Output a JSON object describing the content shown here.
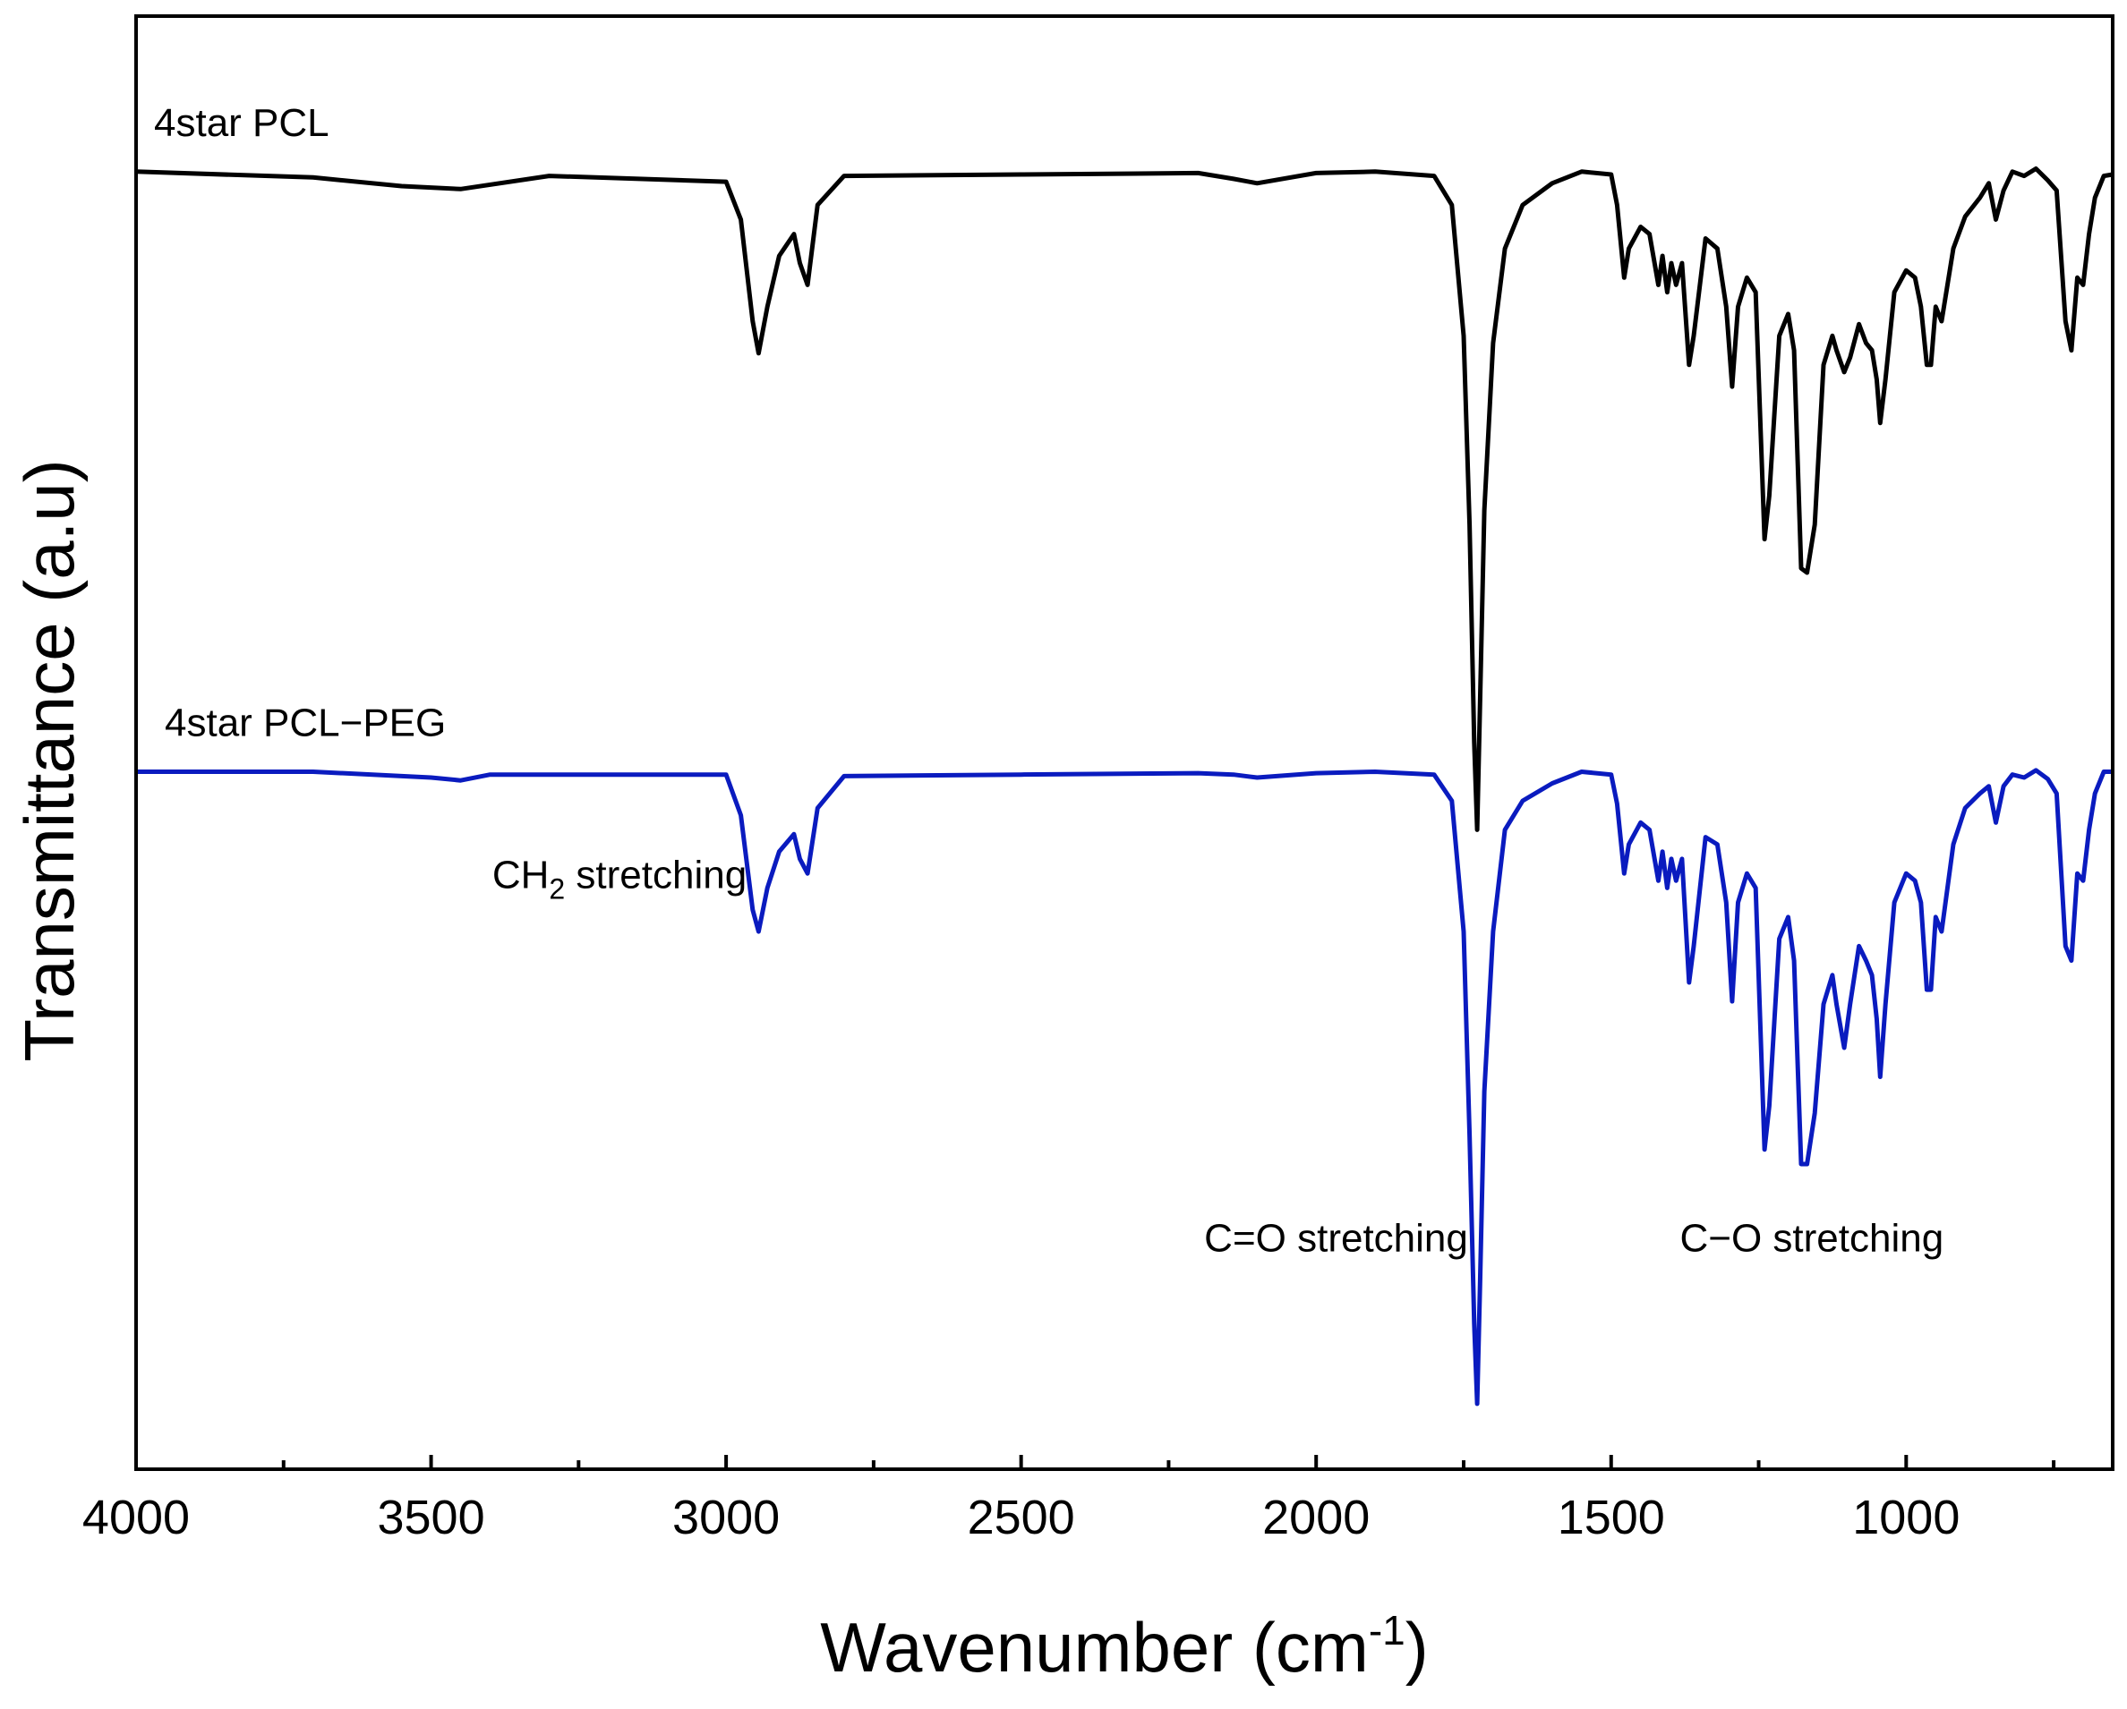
{
  "chart_data": {
    "type": "line",
    "title": "",
    "xlabel": "Wavenumber (cm",
    "xlabel_sup": "-1",
    "xlabel_close": ")",
    "ylabel": "Transmittance (a.u)",
    "xlim": [
      4000,
      650
    ],
    "ylim": [
      0,
      1
    ],
    "x_reversed": true,
    "y_ticks_shown": false,
    "grid": false,
    "x_ticks": [
      4000,
      3500,
      3000,
      2500,
      2000,
      1500,
      1000
    ],
    "x_tick_labels": [
      "4000",
      "3500",
      "3000",
      "2500",
      "2000",
      "1500",
      "1000"
    ],
    "x_minor_ticks": [
      3750,
      3250,
      2750,
      2250,
      1750,
      1250,
      750
    ],
    "series": [
      {
        "name": "4star PCL",
        "label": "4star PCL",
        "color": "#000000",
        "baseline": 0.893,
        "points": [
          [
            4000,
            0.893
          ],
          [
            3700,
            0.889
          ],
          [
            3550,
            0.883
          ],
          [
            3450,
            0.881
          ],
          [
            3300,
            0.89
          ],
          [
            3000,
            0.886
          ],
          [
            2975,
            0.86
          ],
          [
            2955,
            0.79
          ],
          [
            2945,
            0.768
          ],
          [
            2930,
            0.8
          ],
          [
            2910,
            0.835
          ],
          [
            2885,
            0.85
          ],
          [
            2875,
            0.83
          ],
          [
            2862,
            0.815
          ],
          [
            2845,
            0.87
          ],
          [
            2800,
            0.89
          ],
          [
            2500,
            0.891
          ],
          [
            2200,
            0.892
          ],
          [
            2140,
            0.888
          ],
          [
            2100,
            0.885
          ],
          [
            2000,
            0.892
          ],
          [
            1900,
            0.893
          ],
          [
            1800,
            0.89
          ],
          [
            1770,
            0.87
          ],
          [
            1750,
            0.78
          ],
          [
            1740,
            0.65
          ],
          [
            1732,
            0.5
          ],
          [
            1727,
            0.44
          ],
          [
            1722,
            0.53
          ],
          [
            1715,
            0.66
          ],
          [
            1700,
            0.775
          ],
          [
            1680,
            0.84
          ],
          [
            1650,
            0.87
          ],
          [
            1600,
            0.885
          ],
          [
            1550,
            0.893
          ],
          [
            1500,
            0.891
          ],
          [
            1490,
            0.87
          ],
          [
            1478,
            0.82
          ],
          [
            1470,
            0.84
          ],
          [
            1450,
            0.855
          ],
          [
            1435,
            0.85
          ],
          [
            1420,
            0.815
          ],
          [
            1413,
            0.835
          ],
          [
            1405,
            0.81
          ],
          [
            1398,
            0.83
          ],
          [
            1390,
            0.815
          ],
          [
            1380,
            0.83
          ],
          [
            1368,
            0.76
          ],
          [
            1360,
            0.78
          ],
          [
            1340,
            0.847
          ],
          [
            1320,
            0.84
          ],
          [
            1305,
            0.8
          ],
          [
            1295,
            0.745
          ],
          [
            1285,
            0.8
          ],
          [
            1270,
            0.82
          ],
          [
            1255,
            0.81
          ],
          [
            1240,
            0.64
          ],
          [
            1232,
            0.67
          ],
          [
            1215,
            0.78
          ],
          [
            1200,
            0.795
          ],
          [
            1190,
            0.77
          ],
          [
            1178,
            0.62
          ],
          [
            1168,
            0.617
          ],
          [
            1155,
            0.65
          ],
          [
            1140,
            0.76
          ],
          [
            1125,
            0.78
          ],
          [
            1118,
            0.77
          ],
          [
            1105,
            0.755
          ],
          [
            1095,
            0.765
          ],
          [
            1080,
            0.788
          ],
          [
            1068,
            0.775
          ],
          [
            1058,
            0.77
          ],
          [
            1050,
            0.75
          ],
          [
            1044,
            0.72
          ],
          [
            1035,
            0.75
          ],
          [
            1020,
            0.81
          ],
          [
            1000,
            0.825
          ],
          [
            985,
            0.82
          ],
          [
            975,
            0.8
          ],
          [
            965,
            0.76
          ],
          [
            958,
            0.76
          ],
          [
            950,
            0.8
          ],
          [
            940,
            0.79
          ],
          [
            920,
            0.84
          ],
          [
            900,
            0.862
          ],
          [
            875,
            0.875
          ],
          [
            860,
            0.885
          ],
          [
            848,
            0.86
          ],
          [
            835,
            0.88
          ],
          [
            820,
            0.893
          ],
          [
            800,
            0.89
          ],
          [
            780,
            0.895
          ],
          [
            760,
            0.887
          ],
          [
            745,
            0.88
          ],
          [
            730,
            0.79
          ],
          [
            720,
            0.77
          ],
          [
            710,
            0.82
          ],
          [
            700,
            0.815
          ],
          [
            690,
            0.85
          ],
          [
            680,
            0.875
          ],
          [
            665,
            0.89
          ],
          [
            650,
            0.891
          ]
        ]
      },
      {
        "name": "4star PCL-PEG",
        "label": "4star PCL−PEG",
        "color": "#0a1bbf",
        "baseline": 0.48,
        "points": [
          [
            4000,
            0.48
          ],
          [
            3700,
            0.48
          ],
          [
            3500,
            0.476
          ],
          [
            3450,
            0.474
          ],
          [
            3400,
            0.478
          ],
          [
            3000,
            0.478
          ],
          [
            2975,
            0.45
          ],
          [
            2955,
            0.385
          ],
          [
            2945,
            0.37
          ],
          [
            2930,
            0.4
          ],
          [
            2910,
            0.425
          ],
          [
            2885,
            0.437
          ],
          [
            2875,
            0.42
          ],
          [
            2862,
            0.41
          ],
          [
            2845,
            0.455
          ],
          [
            2800,
            0.477
          ],
          [
            2500,
            0.478
          ],
          [
            2200,
            0.479
          ],
          [
            2140,
            0.478
          ],
          [
            2100,
            0.476
          ],
          [
            2000,
            0.479
          ],
          [
            1900,
            0.48
          ],
          [
            1800,
            0.478
          ],
          [
            1770,
            0.46
          ],
          [
            1750,
            0.37
          ],
          [
            1740,
            0.23
          ],
          [
            1732,
            0.1
          ],
          [
            1727,
            0.045
          ],
          [
            1722,
            0.13
          ],
          [
            1715,
            0.26
          ],
          [
            1700,
            0.37
          ],
          [
            1680,
            0.44
          ],
          [
            1650,
            0.46
          ],
          [
            1600,
            0.472
          ],
          [
            1550,
            0.48
          ],
          [
            1500,
            0.478
          ],
          [
            1490,
            0.458
          ],
          [
            1478,
            0.41
          ],
          [
            1470,
            0.43
          ],
          [
            1450,
            0.445
          ],
          [
            1435,
            0.44
          ],
          [
            1420,
            0.405
          ],
          [
            1413,
            0.425
          ],
          [
            1405,
            0.4
          ],
          [
            1398,
            0.42
          ],
          [
            1390,
            0.405
          ],
          [
            1380,
            0.42
          ],
          [
            1368,
            0.335
          ],
          [
            1360,
            0.36
          ],
          [
            1340,
            0.435
          ],
          [
            1320,
            0.43
          ],
          [
            1305,
            0.39
          ],
          [
            1295,
            0.322
          ],
          [
            1285,
            0.39
          ],
          [
            1270,
            0.41
          ],
          [
            1255,
            0.4
          ],
          [
            1240,
            0.22
          ],
          [
            1232,
            0.25
          ],
          [
            1215,
            0.365
          ],
          [
            1200,
            0.38
          ],
          [
            1190,
            0.35
          ],
          [
            1178,
            0.21
          ],
          [
            1168,
            0.21
          ],
          [
            1155,
            0.245
          ],
          [
            1140,
            0.32
          ],
          [
            1125,
            0.34
          ],
          [
            1118,
            0.32
          ],
          [
            1105,
            0.29
          ],
          [
            1095,
            0.32
          ],
          [
            1080,
            0.36
          ],
          [
            1068,
            0.35
          ],
          [
            1058,
            0.34
          ],
          [
            1050,
            0.31
          ],
          [
            1044,
            0.27
          ],
          [
            1035,
            0.32
          ],
          [
            1020,
            0.39
          ],
          [
            1000,
            0.41
          ],
          [
            985,
            0.405
          ],
          [
            975,
            0.39
          ],
          [
            965,
            0.33
          ],
          [
            958,
            0.33
          ],
          [
            950,
            0.38
          ],
          [
            940,
            0.37
          ],
          [
            920,
            0.43
          ],
          [
            900,
            0.455
          ],
          [
            875,
            0.465
          ],
          [
            860,
            0.47
          ],
          [
            848,
            0.445
          ],
          [
            835,
            0.47
          ],
          [
            820,
            0.478
          ],
          [
            800,
            0.476
          ],
          [
            780,
            0.481
          ],
          [
            760,
            0.475
          ],
          [
            745,
            0.465
          ],
          [
            730,
            0.36
          ],
          [
            720,
            0.35
          ],
          [
            710,
            0.41
          ],
          [
            700,
            0.405
          ],
          [
            690,
            0.44
          ],
          [
            680,
            0.465
          ],
          [
            665,
            0.48
          ],
          [
            650,
            0.48
          ]
        ]
      }
    ],
    "annotations": [
      {
        "main": "CH",
        "sub": "2",
        "rest": " stretching",
        "x": 2965,
        "y": 0.4
      },
      {
        "text": "C=O stretching",
        "x": 1735,
        "y": 0.15
      },
      {
        "text": "C−O stretching",
        "x": 1160,
        "y": 0.15
      }
    ]
  }
}
